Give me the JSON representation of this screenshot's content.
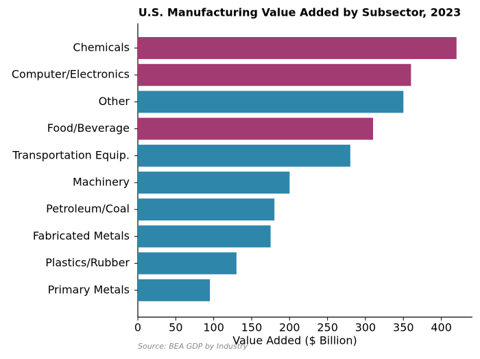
{
  "chart_data": {
    "type": "hbar",
    "title": "U.S. Manufacturing Value Added by Subsector, 2023",
    "categories": [
      "Chemicals",
      "Computer/Electronics",
      "Other",
      "Food/Beverage",
      "Transportation Equip.",
      "Machinery",
      "Petroleum/Coal",
      "Fabricated Metals",
      "Plastics/Rubber",
      "Primary Metals"
    ],
    "values": [
      420,
      360,
      350,
      310,
      280,
      200,
      180,
      175,
      130,
      95
    ],
    "colors": [
      "#a23b72",
      "#a23b72",
      "#2e86ab",
      "#a23b72",
      "#2e86ab",
      "#2e86ab",
      "#2e86ab",
      "#2e86ab",
      "#2e86ab",
      "#2e86ab"
    ],
    "xlabel": "Value Added ($ Billion)",
    "source": "Source: BEA GDP by Industry",
    "xlim": [
      0,
      441
    ],
    "xticks": [
      0,
      50,
      100,
      150,
      200,
      250,
      300,
      350,
      400
    ],
    "grid": false
  }
}
